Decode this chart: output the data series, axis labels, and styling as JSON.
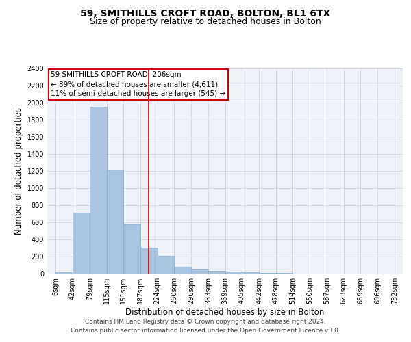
{
  "title_line1": "59, SMITHILLS CROFT ROAD, BOLTON, BL1 6TX",
  "title_line2": "Size of property relative to detached houses in Bolton",
  "xlabel": "Distribution of detached houses by size in Bolton",
  "ylabel": "Number of detached properties",
  "annotation_line1": "59 SMITHILLS CROFT ROAD: 206sqm",
  "annotation_line2": "← 89% of detached houses are smaller (4,611)",
  "annotation_line3": "11% of semi-detached houses are larger (545) →",
  "bar_left_edges": [
    6,
    42,
    79,
    115,
    151,
    187,
    224,
    260,
    296,
    333,
    369,
    405,
    442,
    478,
    514,
    550,
    587,
    623,
    659,
    696
  ],
  "bar_widths": [
    36,
    37,
    36,
    36,
    36,
    37,
    36,
    36,
    37,
    36,
    36,
    37,
    36,
    36,
    36,
    37,
    36,
    36,
    37,
    36
  ],
  "bar_heights": [
    20,
    710,
    1950,
    1220,
    580,
    305,
    210,
    80,
    45,
    30,
    28,
    15,
    10,
    5,
    3,
    2,
    1,
    1,
    0,
    0
  ],
  "bar_color": "#aac4e0",
  "bar_edgecolor": "#5a9fd4",
  "vline_x": 206,
  "vline_color": "#cc0000",
  "ylim": [
    0,
    2400
  ],
  "yticks": [
    0,
    200,
    400,
    600,
    800,
    1000,
    1200,
    1400,
    1600,
    1800,
    2000,
    2200,
    2400
  ],
  "xtick_labels": [
    "6sqm",
    "42sqm",
    "79sqm",
    "115sqm",
    "151sqm",
    "187sqm",
    "224sqm",
    "260sqm",
    "296sqm",
    "333sqm",
    "369sqm",
    "405sqm",
    "442sqm",
    "478sqm",
    "514sqm",
    "550sqm",
    "587sqm",
    "623sqm",
    "659sqm",
    "696sqm",
    "732sqm"
  ],
  "xtick_positions": [
    6,
    42,
    79,
    115,
    151,
    187,
    224,
    260,
    296,
    333,
    369,
    405,
    442,
    478,
    514,
    550,
    587,
    623,
    659,
    696,
    732
  ],
  "grid_color": "#d0d8e8",
  "background_color": "#eef2f8",
  "bar_edgecolor_light": "#7aafd4",
  "footer_line1": "Contains HM Land Registry data © Crown copyright and database right 2024.",
  "footer_line2": "Contains public sector information licensed under the Open Government Licence v3.0.",
  "annotation_box_color": "#cc0000",
  "title_fontsize": 10,
  "subtitle_fontsize": 9,
  "axis_label_fontsize": 8.5,
  "tick_fontsize": 7,
  "annotation_fontsize": 7.5,
  "footer_fontsize": 6.5
}
